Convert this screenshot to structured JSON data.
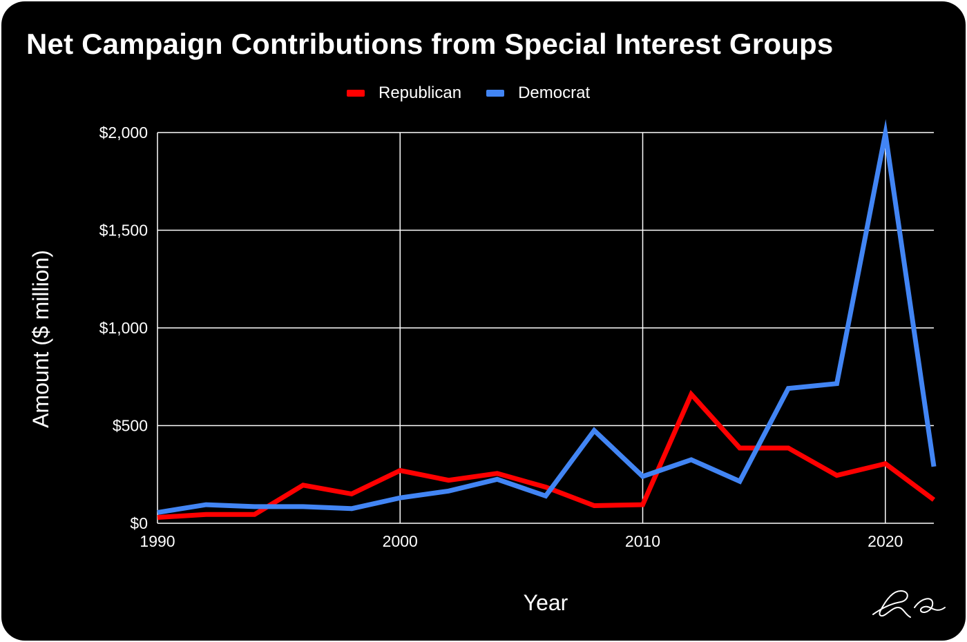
{
  "chart_data": {
    "type": "line",
    "title": "Net Campaign Contributions from Special Interest Groups",
    "xlabel": "Year",
    "ylabel": "Amount ($ million)",
    "x": [
      1990,
      1992,
      1994,
      1996,
      1998,
      2000,
      2002,
      2004,
      2006,
      2008,
      2010,
      2012,
      2014,
      2016,
      2018,
      2020,
      2022
    ],
    "series": [
      {
        "name": "Republican",
        "color": "#ff0000",
        "values": [
          30,
          45,
          45,
          195,
          150,
          270,
          220,
          255,
          185,
          90,
          95,
          660,
          385,
          385,
          245,
          305,
          120
        ]
      },
      {
        "name": "Democrat",
        "color": "#4285f4",
        "values": [
          55,
          95,
          85,
          85,
          75,
          130,
          165,
          225,
          140,
          475,
          240,
          325,
          215,
          690,
          715,
          1995,
          290
        ]
      }
    ],
    "xlim": [
      1990,
      2022
    ],
    "ylim": [
      0,
      2000
    ],
    "xticks": [
      1990,
      2000,
      2010,
      2020
    ],
    "xtick_labels": [
      "1990",
      "2000",
      "2010",
      "2020"
    ],
    "yticks": [
      0,
      500,
      1000,
      1500,
      2000
    ],
    "ytick_labels": [
      "$0",
      "$500",
      "$1,000",
      "$1,500",
      "$2,000"
    ],
    "grid": true,
    "legend_position": "top-center"
  },
  "signature": {
    "text": "RC"
  },
  "colors": {
    "background": "#000000",
    "grid": "#ffffff",
    "text": "#ffffff"
  }
}
